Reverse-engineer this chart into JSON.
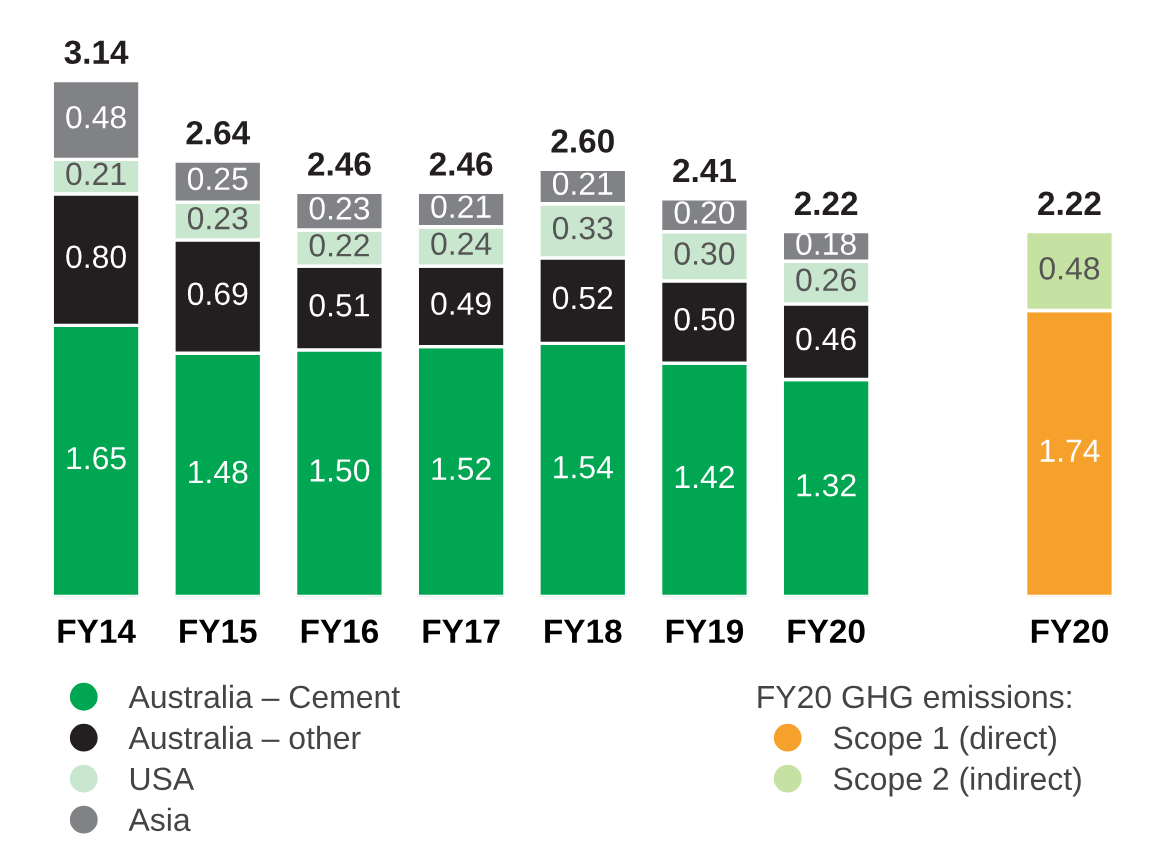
{
  "chart_data": {
    "type": "bar",
    "stacked": true,
    "legend": "bottom",
    "legend_title": "FY20 GHG emissions:",
    "categories": [
      "FY14",
      "FY15",
      "FY16",
      "FY17",
      "FY18",
      "FY19",
      "FY20",
      null,
      "FY20"
    ],
    "series": [
      {
        "name": "Australia – Cement",
        "color": "#00a651",
        "values": [
          1.65,
          1.48,
          1.5,
          1.52,
          1.54,
          1.42,
          1.32,
          null,
          null
        ],
        "value_labels": [
          "1.65",
          "1.48",
          "1.50",
          "1.52",
          "1.54",
          "1.42",
          "1.32",
          null,
          null
        ]
      },
      {
        "name": "Australia – other",
        "color": "#231f20",
        "values": [
          0.8,
          0.69,
          0.51,
          0.49,
          0.52,
          0.5,
          0.46,
          null,
          null
        ],
        "value_labels": [
          "0.80",
          "0.69",
          "0.51",
          "0.49",
          "0.52",
          "0.50",
          "0.46",
          null,
          null
        ]
      },
      {
        "name": "USA",
        "color": "#c9e7cf",
        "values": [
          0.21,
          0.23,
          0.22,
          0.24,
          0.33,
          0.3,
          0.26,
          null,
          null
        ],
        "value_labels": [
          "0.21",
          "0.23",
          "0.22",
          "0.24",
          "0.33",
          "0.30",
          "0.26",
          null,
          null
        ]
      },
      {
        "name": "Asia",
        "color": "#808285",
        "values": [
          0.48,
          0.25,
          0.23,
          0.21,
          0.21,
          0.2,
          0.18,
          null,
          null
        ],
        "value_labels": [
          "0.48",
          "0.25",
          "0.23",
          "0.21",
          "0.21",
          "0.20",
          "0.18",
          null,
          null
        ]
      },
      {
        "name": "Scope 1 (direct)",
        "color": "#f7a12d",
        "values": [
          null,
          null,
          null,
          null,
          null,
          null,
          null,
          null,
          1.74
        ],
        "value_labels": [
          null,
          null,
          null,
          null,
          null,
          null,
          null,
          null,
          "1.74"
        ]
      },
      {
        "name": "Scope 2 (indirect)",
        "color": "#c6e2a3",
        "values": [
          null,
          null,
          null,
          null,
          null,
          null,
          null,
          null,
          0.48
        ],
        "value_labels": [
          null,
          null,
          null,
          null,
          null,
          null,
          null,
          null,
          "0.48"
        ]
      }
    ],
    "totals": [
      "3.14",
      "2.64",
      "2.46",
      "2.46",
      "2.60",
      "2.41",
      "2.22",
      null,
      "2.22"
    ]
  }
}
